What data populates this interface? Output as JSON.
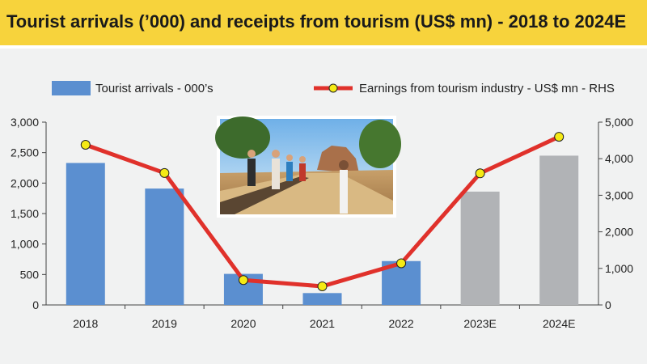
{
  "title": "Tourist arrivals (’000) and receipts from tourism (US$ mn) - 2018 to 2024E",
  "legend": {
    "bars": "Tourist arrivals - 000’s",
    "line": "Earnings from tourism industry - US$ mn - RHS"
  },
  "chart_data": {
    "type": "bar",
    "categories": [
      "2018",
      "2019",
      "2020",
      "2021",
      "2022",
      "2023E",
      "2024E"
    ],
    "series": [
      {
        "name": "Tourist arrivals - 000’s",
        "type": "bar",
        "axis": "left",
        "values": [
          2330,
          1910,
          510,
          195,
          720,
          1860,
          2450
        ],
        "colors": [
          "#5b8fd0",
          "#5b8fd0",
          "#5b8fd0",
          "#5b8fd0",
          "#5b8fd0",
          "#b1b3b6",
          "#b1b3b6"
        ]
      },
      {
        "name": "Earnings from tourism industry - US$ mn - RHS",
        "type": "line",
        "axis": "right",
        "values": [
          4380,
          3610,
          680,
          510,
          1140,
          3600,
          4600
        ],
        "line_color": "#e0312b",
        "marker_color": "#f5ea15"
      }
    ],
    "ylim": [
      0,
      3000
    ],
    "y_ticks": [
      "0",
      "500",
      "1,000",
      "1,500",
      "2,000",
      "2,500",
      "3,000"
    ],
    "y2lim": [
      0,
      5000
    ],
    "y2_ticks": [
      "0",
      "1,000",
      "2,000",
      "3,000",
      "4,000",
      "5,000"
    ],
    "legend_position": "top",
    "grid": false
  },
  "photo": {
    "description_icon": "tourists-at-sigiriya-photo"
  },
  "colors": {
    "title_bg": "#f7d33c",
    "panel_bg": "#f1f2f2",
    "bar_actual": "#5b8fd0",
    "bar_estimate": "#b1b3b6",
    "line": "#e0312b",
    "marker": "#f5ea15"
  }
}
